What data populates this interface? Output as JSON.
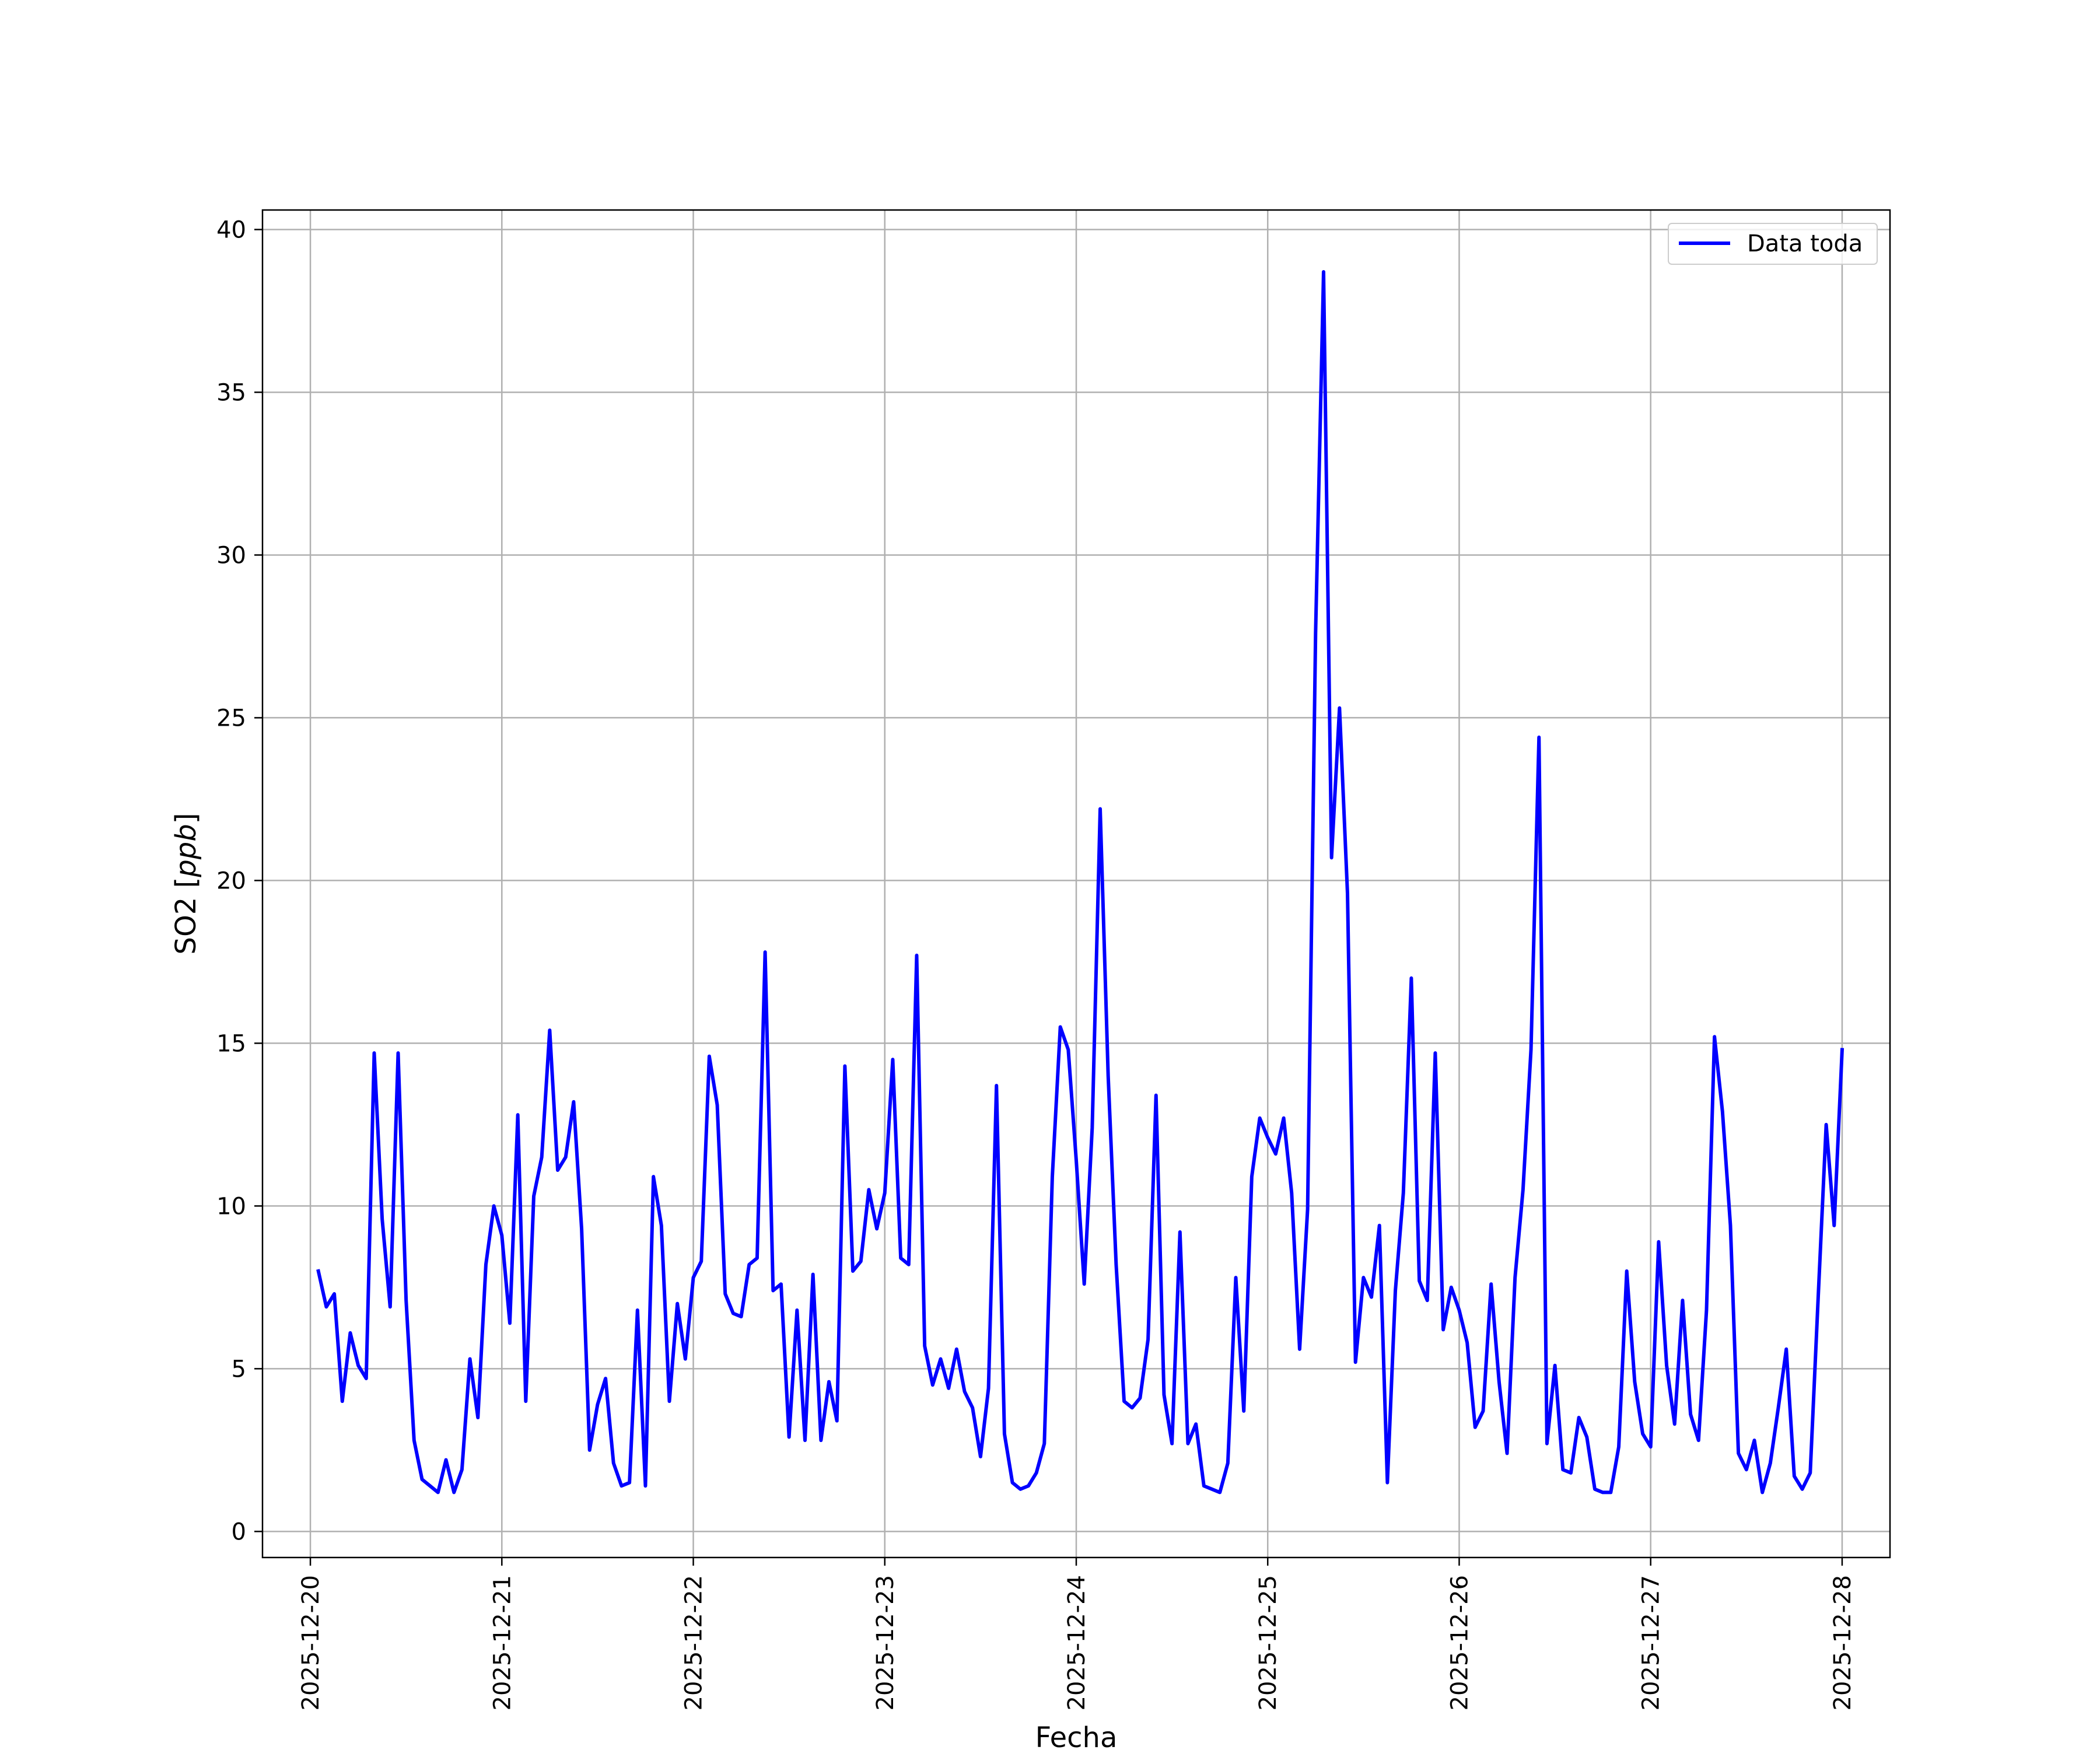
{
  "chart_data": {
    "type": "line",
    "title": "",
    "xlabel": "Fecha",
    "ylabel_main": "SO2 [",
    "ylabel_unit": "ppb",
    "ylabel_end": "]",
    "xlim": [
      "2025-12-19T18:00",
      "2025-12-28T06:00"
    ],
    "ylim": [
      -0.8,
      40.6
    ],
    "x_ticks": [
      "2025-12-20",
      "2025-12-21",
      "2025-12-22",
      "2025-12-23",
      "2025-12-24",
      "2025-12-25",
      "2025-12-26",
      "2025-12-27",
      "2025-12-28"
    ],
    "y_ticks": [
      "0",
      "5",
      "10",
      "15",
      "20",
      "25",
      "30",
      "35",
      "40"
    ],
    "grid": true,
    "legend_position": "top-right",
    "line_color": "#0000ff",
    "series": [
      {
        "name": "Data toda",
        "x_start": "2025-12-20T01:00",
        "x_step_hours": 1,
        "values": [
          8.0,
          6.9,
          7.3,
          4.0,
          6.1,
          5.1,
          4.7,
          14.7,
          9.6,
          6.9,
          14.7,
          7.1,
          2.8,
          1.6,
          1.4,
          1.2,
          2.2,
          1.2,
          1.9,
          5.3,
          3.5,
          8.2,
          10.0,
          9.1,
          6.4,
          12.8,
          4.0,
          10.3,
          11.5,
          15.4,
          11.1,
          11.5,
          13.2,
          9.3,
          2.5,
          3.9,
          4.7,
          2.1,
          1.4,
          1.5,
          6.8,
          1.4,
          10.9,
          9.4,
          4.0,
          7.0,
          5.3,
          7.8,
          8.3,
          14.6,
          13.1,
          7.3,
          6.7,
          6.6,
          8.2,
          8.4,
          17.8,
          7.4,
          7.6,
          2.9,
          6.8,
          2.8,
          7.9,
          2.8,
          4.6,
          3.4,
          14.3,
          8.0,
          8.3,
          10.5,
          9.3,
          10.4,
          14.5,
          8.4,
          8.2,
          17.7,
          5.7,
          4.5,
          5.3,
          4.4,
          5.6,
          4.3,
          3.8,
          2.3,
          4.4,
          13.7,
          3.0,
          1.5,
          1.3,
          1.4,
          1.8,
          2.7,
          10.9,
          15.5,
          14.8,
          11.4,
          7.6,
          12.4,
          22.2,
          14.0,
          8.2,
          4.0,
          3.8,
          4.1,
          5.9,
          13.4,
          4.2,
          2.7,
          9.2,
          2.7,
          3.3,
          1.4,
          1.3,
          1.2,
          2.1,
          7.8,
          3.7,
          10.9,
          12.7,
          12.1,
          11.6,
          12.7,
          10.4,
          5.6,
          9.9,
          27.6,
          38.7,
          20.7,
          25.3,
          19.6,
          5.2,
          7.8,
          7.2,
          9.4,
          1.5,
          7.4,
          10.4,
          17.0,
          7.7,
          7.1,
          14.7,
          6.2,
          7.5,
          6.8,
          5.8,
          3.2,
          3.7,
          7.6,
          4.6,
          2.4,
          7.8,
          10.5,
          14.8,
          24.4,
          2.7,
          5.1,
          1.9,
          1.8,
          3.5,
          2.9,
          1.3,
          1.2,
          1.2,
          2.6,
          8.0,
          4.6,
          3.0,
          2.6,
          8.9,
          5.1,
          3.3,
          7.1,
          3.6,
          2.8,
          6.8,
          15.2,
          12.9,
          9.4,
          2.4,
          1.9,
          2.8,
          1.2,
          2.1,
          3.8,
          5.6,
          1.7,
          1.3,
          1.8,
          7.2,
          12.5,
          9.4,
          14.8
        ]
      }
    ]
  }
}
